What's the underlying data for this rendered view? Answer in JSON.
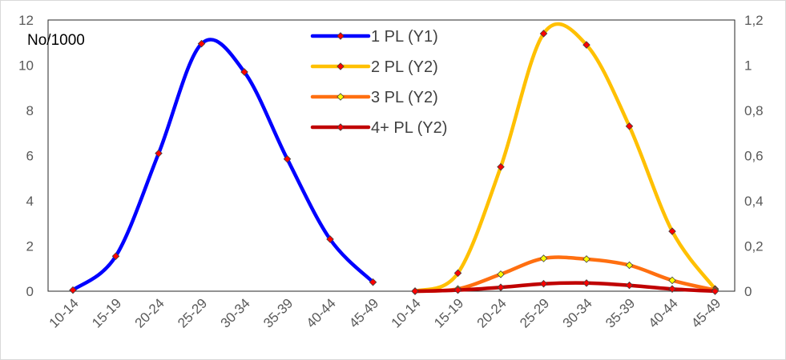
{
  "chart_data": {
    "type": "line",
    "ylabel": "No/1000",
    "y1_ticks": [
      "0",
      "2",
      "4",
      "6",
      "8",
      "10",
      "12"
    ],
    "y1_range": [
      0,
      12
    ],
    "y2_ticks": [
      "0",
      "0,2",
      "0,4",
      "0,6",
      "0,8",
      "1",
      "1,2"
    ],
    "y2_range": [
      0,
      1.2
    ],
    "grid": false,
    "legend_position": "top-center",
    "left_panel": {
      "categories": [
        "10-14",
        "15-19",
        "20-24",
        "25-29",
        "30-34",
        "35-39",
        "40-44",
        "45-49"
      ],
      "series": [
        {
          "name": "1 PL (Y1)",
          "axis": "y1",
          "color": "#0000ff",
          "values": [
            0.05,
            1.55,
            6.1,
            10.95,
            9.7,
            5.85,
            2.3,
            0.4
          ]
        }
      ]
    },
    "right_panel": {
      "categories": [
        "10-14",
        "15-19",
        "20-24",
        "25-29",
        "30-34",
        "35-39",
        "40-44",
        "45-49"
      ],
      "series": [
        {
          "name": "2 PL (Y2)",
          "axis": "y2",
          "color": "#ffc000",
          "values": [
            0.0,
            0.08,
            0.55,
            1.14,
            1.09,
            0.73,
            0.265,
            0.01
          ]
        },
        {
          "name": "3 PL (Y2)",
          "axis": "y2",
          "color": "#ff6f10",
          "values": [
            0.0,
            0.01,
            0.075,
            0.145,
            0.142,
            0.115,
            0.048,
            0.005
          ]
        },
        {
          "name": "4+ PL (Y2)",
          "axis": "y2",
          "color": "#c00000",
          "values": [
            0.0,
            0.005,
            0.017,
            0.033,
            0.036,
            0.026,
            0.01,
            0.0
          ]
        }
      ]
    },
    "marker_fill": "#ff0000",
    "marker_fill_alt": "#ffff00"
  }
}
